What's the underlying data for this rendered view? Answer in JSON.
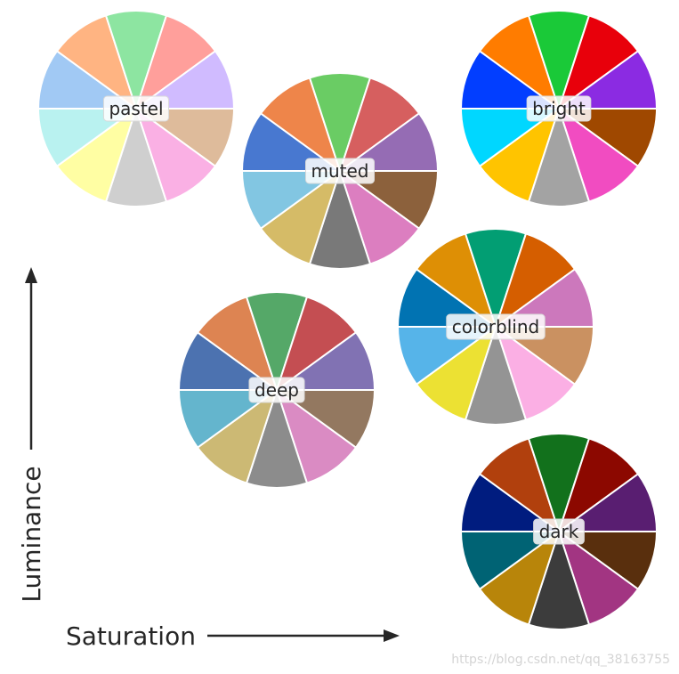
{
  "palettes": [
    {
      "name": "pastel",
      "colors": [
        "#a1c9f4",
        "#ffb482",
        "#8de5a1",
        "#ff9f9b",
        "#d0bbff",
        "#debb9b",
        "#fab0e4",
        "#cfcfcf",
        "#fffea3",
        "#b9f2f0"
      ]
    },
    {
      "name": "muted",
      "colors": [
        "#4878d0",
        "#ee854a",
        "#6acc64",
        "#d65f5f",
        "#956cb4",
        "#8c613c",
        "#dc7ec0",
        "#797979",
        "#d5bb67",
        "#82c6e2"
      ]
    },
    {
      "name": "bright",
      "colors": [
        "#023eff",
        "#ff7c00",
        "#1ac938",
        "#e8000b",
        "#8b2be2",
        "#9f4800",
        "#f14cc1",
        "#a3a3a3",
        "#ffc400",
        "#00d7ff"
      ]
    },
    {
      "name": "colorblind",
      "colors": [
        "#0173b2",
        "#de8f05",
        "#029e73",
        "#d55e00",
        "#cc78bc",
        "#ca9161",
        "#fbafe4",
        "#949494",
        "#ece133",
        "#56b4e9"
      ]
    },
    {
      "name": "deep",
      "colors": [
        "#4c72b0",
        "#dd8452",
        "#55a868",
        "#c44e52",
        "#8172b3",
        "#937860",
        "#da8bc3",
        "#8c8c8c",
        "#ccb974",
        "#64b5cd"
      ]
    },
    {
      "name": "dark",
      "colors": [
        "#001c7f",
        "#b1400d",
        "#12711c",
        "#8c0800",
        "#591e71",
        "#592f0d",
        "#a23582",
        "#3c3c3c",
        "#b8850a",
        "#006374"
      ]
    }
  ],
  "axes": {
    "x_label": "Saturation",
    "y_label": "Luminance"
  },
  "watermark": "https://blog.csdn.net/qq_38163755",
  "colors": {
    "text": "#262626",
    "wedge_border": "#ffffff",
    "watermark": "#d4d4d4"
  }
}
